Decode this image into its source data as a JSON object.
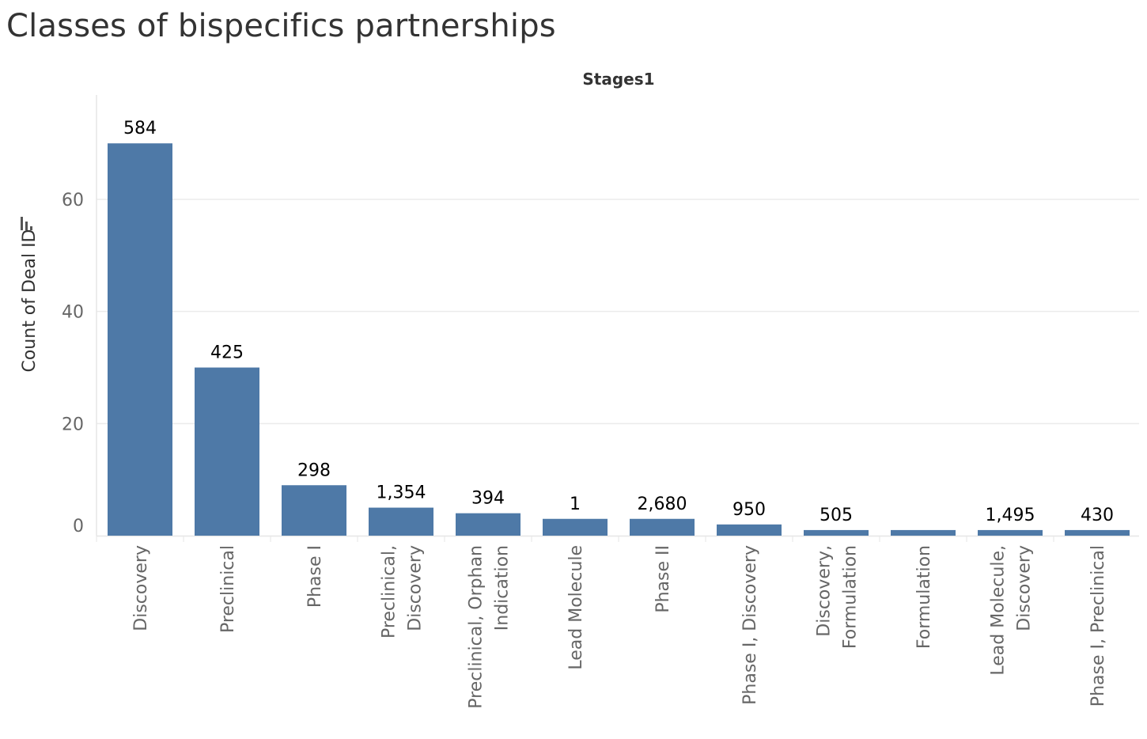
{
  "title": "Classes of bispecifics partnerships",
  "chart_data": {
    "type": "bar",
    "column_header": "Stages1",
    "ylabel": "Count of Deal ID",
    "ylim": [
      0,
      78
    ],
    "yticks": [
      0,
      20,
      40,
      60
    ],
    "grid": true,
    "categories": [
      "Discovery",
      "Preclinical",
      "Phase I",
      "Preclinical, Discovery",
      "Preclinical, Orphan Indication",
      "Lead Molecule",
      "Phase II",
      "Phase I, Discovery",
      "Discovery, Formulation",
      "Formulation",
      "Lead Molecule, Discovery",
      "Phase I, Preclinical"
    ],
    "category_lines": [
      [
        "Discovery"
      ],
      [
        "Preclinical"
      ],
      [
        "Phase I"
      ],
      [
        "Preclinical,",
        "Discovery"
      ],
      [
        "Preclinical, Orphan",
        "Indication"
      ],
      [
        "Lead Molecule"
      ],
      [
        "Phase II"
      ],
      [
        "Phase I, Discovery"
      ],
      [
        "Discovery,",
        "Formulation"
      ],
      [
        "Formulation"
      ],
      [
        "Lead Molecule,",
        "Discovery"
      ],
      [
        "Phase I, Preclinical"
      ]
    ],
    "values": [
      70,
      30,
      9,
      5,
      4,
      3,
      3,
      2,
      1,
      1,
      1,
      1
    ],
    "data_labels": [
      "584",
      "425",
      "298",
      "1,354",
      "394",
      "1",
      "2,680",
      "950",
      "505",
      "",
      "1,495",
      "430"
    ],
    "bar_color": "#4e79a7",
    "grid_color": "#ebebeb",
    "axis_color": "#e6e6e6"
  }
}
